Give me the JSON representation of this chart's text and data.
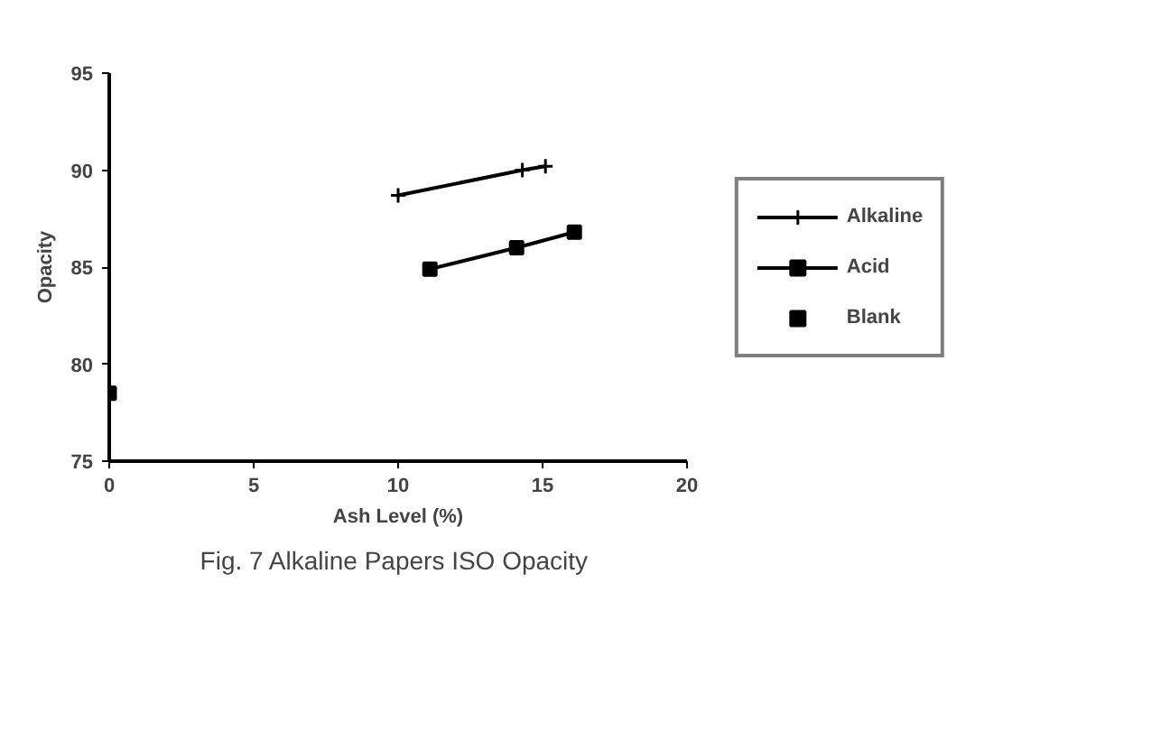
{
  "chart_data": {
    "type": "line",
    "title": "Fig. 7  Alkaline Papers ISO Opacity",
    "xlabel": "Ash Level (%)",
    "ylabel": "Opacity",
    "xlim": [
      0,
      20
    ],
    "xticks": [
      0,
      5,
      10,
      15,
      20
    ],
    "ylim": [
      75,
      95
    ],
    "yticks": [
      75,
      80,
      85,
      90,
      95
    ],
    "grid": false,
    "legend": "right",
    "series": [
      {
        "name": "Alkaline",
        "color": "#000000",
        "marker": "cross",
        "x": [
          10.0,
          14.3,
          15.1
        ],
        "values": [
          88.7,
          90.0,
          90.2
        ]
      },
      {
        "name": "Acid",
        "color": "#000000",
        "marker": "square",
        "x": [
          11.1,
          14.1,
          16.1
        ],
        "values": [
          84.9,
          86.0,
          86.8
        ]
      },
      {
        "name": "Blank",
        "type": "scatter",
        "color": "#000000",
        "marker": "square",
        "x": [
          0
        ],
        "values": [
          78.5
        ]
      }
    ]
  }
}
